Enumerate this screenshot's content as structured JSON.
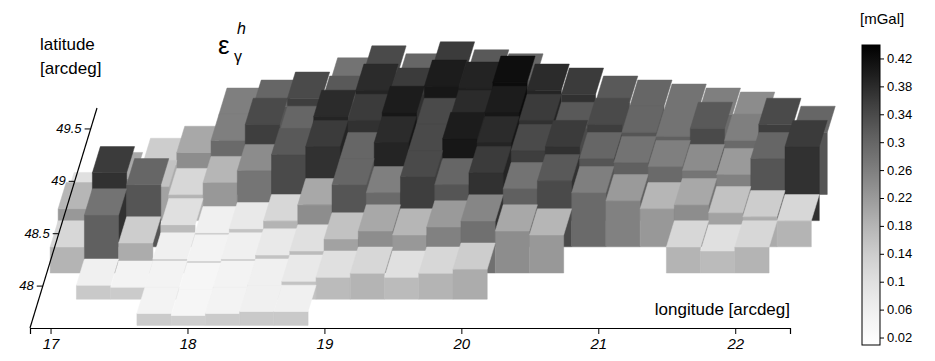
{
  "chart_data": {
    "type": "surface3d",
    "title": {
      "symbol": "ε",
      "subscript": "γ",
      "superscript": "h"
    },
    "x_label": "longitude [arcdeg]",
    "y_label": "latitude [arcdeg]",
    "x": [
      17.0,
      17.25,
      17.5,
      17.75,
      18.0,
      18.25,
      18.5,
      18.75,
      19.0,
      19.25,
      19.5,
      19.75,
      20.0,
      20.25,
      20.5,
      20.75,
      21.0,
      21.25,
      21.5,
      21.75,
      22.0,
      22.25
    ],
    "y": [
      47.75,
      48.0,
      48.25,
      48.5,
      48.75,
      49.0,
      49.25,
      49.5
    ],
    "z": [
      [
        null,
        null,
        null,
        0.05,
        0.04,
        0.05,
        0.06,
        0.06,
        null,
        null,
        null,
        null,
        null,
        null,
        null,
        null,
        null,
        null,
        null,
        null,
        null,
        null
      ],
      [
        null,
        0.06,
        0.05,
        0.05,
        0.04,
        0.05,
        0.06,
        0.08,
        0.1,
        0.12,
        0.1,
        0.12,
        0.14,
        null,
        null,
        null,
        null,
        null,
        null,
        null,
        null,
        null
      ],
      [
        0.12,
        0.28,
        0.14,
        0.06,
        0.05,
        0.06,
        0.08,
        0.1,
        0.16,
        0.2,
        0.18,
        0.22,
        0.25,
        0.2,
        0.18,
        null,
        null,
        null,
        0.12,
        0.1,
        0.12,
        null
      ],
      [
        0.18,
        0.36,
        0.3,
        0.1,
        0.06,
        0.08,
        0.12,
        0.2,
        0.3,
        0.26,
        0.34,
        0.3,
        0.36,
        0.28,
        0.32,
        0.26,
        0.22,
        0.18,
        0.2,
        0.16,
        0.14,
        0.12
      ],
      [
        0.1,
        0.2,
        0.16,
        0.12,
        0.18,
        0.24,
        0.32,
        0.36,
        0.3,
        0.38,
        0.34,
        0.4,
        0.38,
        0.34,
        0.36,
        0.3,
        0.28,
        0.26,
        0.24,
        0.22,
        0.3,
        0.36
      ],
      [
        null,
        null,
        0.14,
        0.2,
        0.26,
        0.34,
        0.3,
        0.38,
        0.36,
        0.4,
        0.34,
        0.38,
        0.4,
        0.36,
        0.32,
        0.34,
        0.3,
        0.28,
        0.32,
        0.26,
        0.34,
        0.3
      ],
      [
        null,
        null,
        null,
        null,
        0.26,
        0.3,
        0.34,
        0.32,
        0.38,
        0.36,
        0.4,
        0.39,
        0.42,
        0.38,
        0.36,
        0.32,
        0.3,
        0.28,
        0.26,
        0.24,
        null,
        null
      ],
      [
        null,
        null,
        null,
        null,
        null,
        null,
        null,
        0.28,
        0.34,
        0.3,
        0.36,
        0.32,
        0.3,
        null,
        null,
        null,
        null,
        null,
        null,
        null,
        null,
        null
      ]
    ],
    "xlim": [
      16.85,
      22.4
    ],
    "ylim": [
      47.6,
      49.7
    ],
    "xticks": [
      17,
      18,
      19,
      20,
      21,
      22
    ],
    "yticks": [
      48,
      48.5,
      49,
      49.5
    ],
    "colorbar": {
      "label": "[mGal]",
      "lim": [
        0.01,
        0.44
      ],
      "ticks": [
        0.02,
        0.06,
        0.1,
        0.14,
        0.18,
        0.22,
        0.26,
        0.3,
        0.34,
        0.38,
        0.42
      ]
    }
  }
}
